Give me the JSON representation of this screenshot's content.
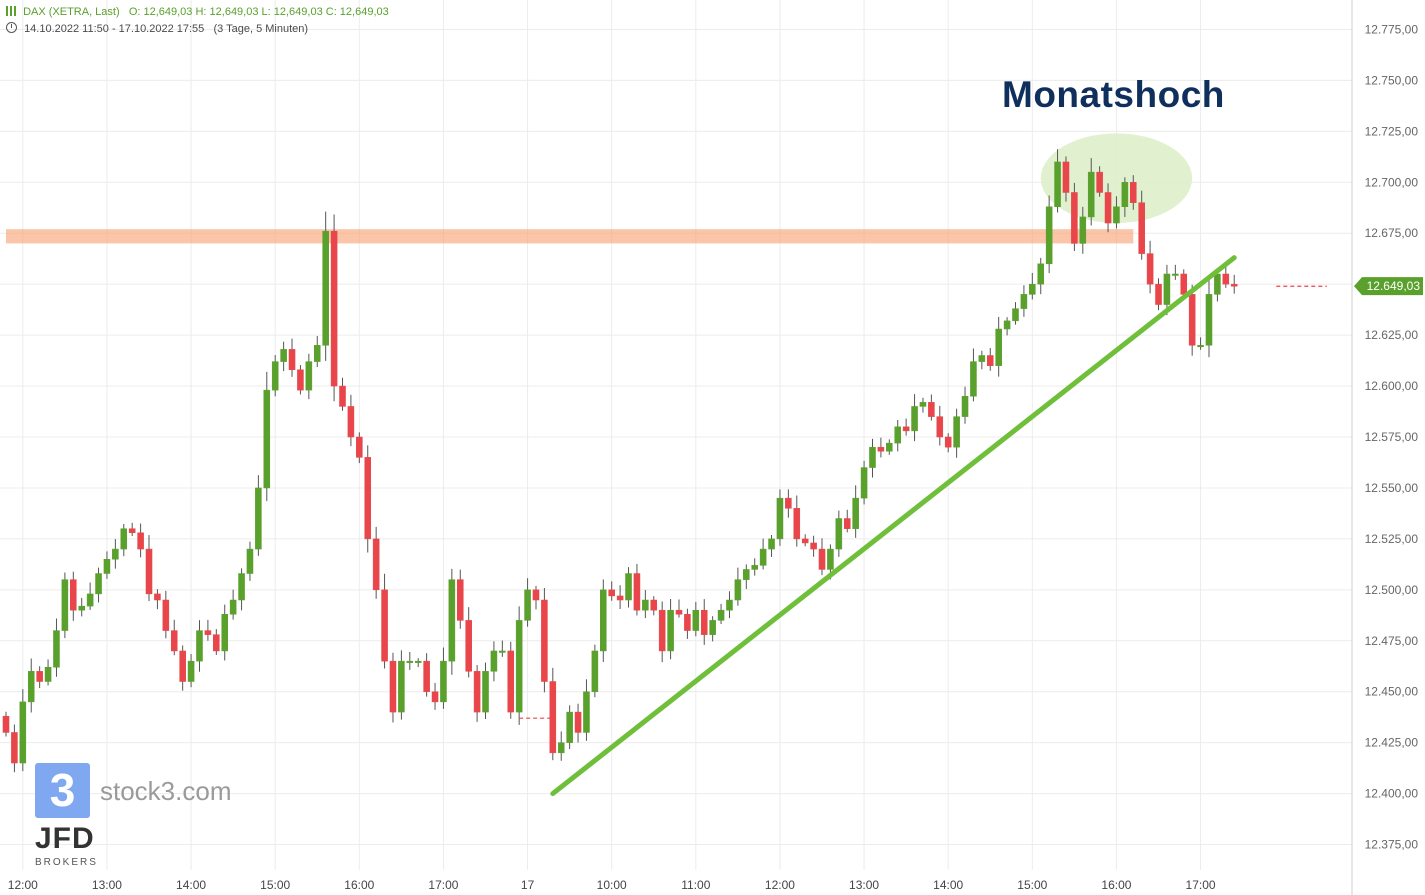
{
  "header": {
    "instrument": "DAX (XETRA, Last)",
    "ohlc": "O: 12,649,03  H: 12,649,03  L: 12,649,03  C: 12,649,03",
    "range": "14.10.2022 11:50 - 17.10.2022 17:55",
    "interval": "(3 Tage, 5 Minuten)"
  },
  "annotation": {
    "text": "Monatshoch"
  },
  "branding": {
    "logo_glyph": "3",
    "site": "stock3.com",
    "broker": "JFD",
    "broker_sub": "BROKERS"
  },
  "colors": {
    "up": "#5aa02c",
    "down": "#e8464a",
    "trend": "#6fbf3a",
    "resistance": "#f7a67a",
    "highlight": "#dcefc8",
    "grid": "#ececec"
  },
  "chart_data": {
    "type": "candlestick",
    "ylim": [
      12362.5,
      12787.5
    ],
    "yticks": [
      12375,
      12400,
      12425,
      12450,
      12475,
      12500,
      12525,
      12550,
      12575,
      12600,
      12625,
      12650,
      12675,
      12700,
      12725,
      12750,
      12775
    ],
    "ytick_labels": [
      "12.375,00",
      "12.400,00",
      "12.425,00",
      "12.450,00",
      "12.475,00",
      "12.500,00",
      "12.525,00",
      "12.550,00",
      "12.575,00",
      "12.600,00",
      "12.625,00",
      "12.650,00",
      "12.675,00",
      "12.700,00",
      "12.725,00",
      "12.750,00",
      "12.775,00"
    ],
    "xlim": [
      0,
      160
    ],
    "x_ticks": [
      {
        "x": 2,
        "label": "12:00"
      },
      {
        "x": 12,
        "label": "13:00"
      },
      {
        "x": 22,
        "label": "14:00"
      },
      {
        "x": 32,
        "label": "15:00"
      },
      {
        "x": 42,
        "label": "16:00"
      },
      {
        "x": 52,
        "label": "17:00"
      },
      {
        "x": 62,
        "label": "17"
      },
      {
        "x": 72,
        "label": "10:00"
      },
      {
        "x": 82,
        "label": "11:00"
      },
      {
        "x": 92,
        "label": "12:00"
      },
      {
        "x": 102,
        "label": "13:00"
      },
      {
        "x": 112,
        "label": "14:00"
      },
      {
        "x": 122,
        "label": "15:00"
      },
      {
        "x": 132,
        "label": "16:00"
      },
      {
        "x": 142,
        "label": "17:00"
      }
    ],
    "last_price": 12649.03,
    "last_price_label": "12.649,03",
    "grid": true,
    "close_path": [
      [
        0,
        12430
      ],
      [
        1,
        12415
      ],
      [
        2,
        12445
      ],
      [
        3,
        12460
      ],
      [
        4,
        12455
      ],
      [
        5,
        12462
      ],
      [
        6,
        12480
      ],
      [
        7,
        12505
      ],
      [
        8,
        12490
      ],
      [
        9,
        12492
      ],
      [
        10,
        12498
      ],
      [
        11,
        12508
      ],
      [
        12,
        12515
      ],
      [
        13,
        12520
      ],
      [
        14,
        12530
      ],
      [
        15,
        12528
      ],
      [
        16,
        12520
      ],
      [
        17,
        12498
      ],
      [
        18,
        12495
      ],
      [
        19,
        12480
      ],
      [
        20,
        12470
      ],
      [
        21,
        12455
      ],
      [
        22,
        12465
      ],
      [
        23,
        12480
      ],
      [
        24,
        12478
      ],
      [
        25,
        12470
      ],
      [
        26,
        12488
      ],
      [
        27,
        12495
      ],
      [
        28,
        12508
      ],
      [
        29,
        12520
      ],
      [
        30,
        12550
      ],
      [
        31,
        12598
      ],
      [
        32,
        12612
      ],
      [
        33,
        12618
      ],
      [
        34,
        12608
      ],
      [
        35,
        12598
      ],
      [
        36,
        12612
      ],
      [
        37,
        12620
      ],
      [
        38,
        12676
      ],
      [
        39,
        12600
      ],
      [
        40,
        12590
      ],
      [
        41,
        12575
      ],
      [
        42,
        12565
      ],
      [
        43,
        12525
      ],
      [
        44,
        12500
      ],
      [
        45,
        12465
      ],
      [
        46,
        12440
      ],
      [
        47,
        12465
      ],
      [
        48,
        12465
      ],
      [
        49,
        12465
      ],
      [
        50,
        12450
      ],
      [
        51,
        12445
      ],
      [
        52,
        12465
      ],
      [
        53,
        12505
      ],
      [
        54,
        12485
      ],
      [
        55,
        12460
      ],
      [
        56,
        12440
      ],
      [
        57,
        12460
      ],
      [
        58,
        12470
      ],
      [
        59,
        12470
      ],
      [
        60,
        12440
      ],
      [
        61,
        12485
      ],
      [
        62,
        12500
      ],
      [
        63,
        12495
      ],
      [
        64,
        12455
      ],
      [
        65,
        12420
      ],
      [
        66,
        12425
      ],
      [
        67,
        12440
      ],
      [
        68,
        12430
      ],
      [
        69,
        12450
      ],
      [
        70,
        12470
      ],
      [
        71,
        12500
      ],
      [
        72,
        12497
      ],
      [
        73,
        12495
      ],
      [
        74,
        12508
      ],
      [
        75,
        12490
      ],
      [
        76,
        12495
      ],
      [
        77,
        12490
      ],
      [
        78,
        12470
      ],
      [
        79,
        12490
      ],
      [
        80,
        12488
      ],
      [
        81,
        12480
      ],
      [
        82,
        12490
      ],
      [
        83,
        12478
      ],
      [
        84,
        12485
      ],
      [
        85,
        12490
      ],
      [
        86,
        12495
      ],
      [
        87,
        12505
      ],
      [
        88,
        12510
      ],
      [
        89,
        12512
      ],
      [
        90,
        12520
      ],
      [
        91,
        12525
      ],
      [
        92,
        12545
      ],
      [
        93,
        12540
      ],
      [
        94,
        12525
      ],
      [
        95,
        12523
      ],
      [
        96,
        12520
      ],
      [
        97,
        12510
      ],
      [
        98,
        12520
      ],
      [
        99,
        12535
      ],
      [
        100,
        12530
      ],
      [
        101,
        12545
      ],
      [
        102,
        12560
      ],
      [
        103,
        12570
      ],
      [
        104,
        12568
      ],
      [
        105,
        12572
      ],
      [
        106,
        12580
      ],
      [
        107,
        12578
      ],
      [
        108,
        12590
      ],
      [
        109,
        12592
      ],
      [
        110,
        12585
      ],
      [
        111,
        12575
      ],
      [
        112,
        12570
      ],
      [
        113,
        12585
      ],
      [
        114,
        12595
      ],
      [
        115,
        12612
      ],
      [
        116,
        12615
      ],
      [
        117,
        12610
      ],
      [
        118,
        12628
      ],
      [
        119,
        12632
      ],
      [
        120,
        12638
      ],
      [
        121,
        12645
      ],
      [
        122,
        12650
      ],
      [
        123,
        12660
      ],
      [
        124,
        12688
      ],
      [
        125,
        12710
      ],
      [
        126,
        12695
      ],
      [
        127,
        12670
      ],
      [
        128,
        12683
      ],
      [
        129,
        12705
      ],
      [
        130,
        12695
      ],
      [
        131,
        12680
      ],
      [
        132,
        12688
      ],
      [
        133,
        12700
      ],
      [
        134,
        12690
      ],
      [
        135,
        12665
      ],
      [
        136,
        12650
      ],
      [
        137,
        12640
      ],
      [
        138,
        12655
      ],
      [
        139,
        12655
      ],
      [
        140,
        12645
      ],
      [
        141,
        12620
      ],
      [
        142,
        12620
      ],
      [
        143,
        12645
      ],
      [
        144,
        12655
      ],
      [
        145,
        12650
      ],
      [
        146,
        12649
      ]
    ],
    "dashed_levels": [
      {
        "x1": 61,
        "x2": 65,
        "y": 12437
      },
      {
        "x1": 151,
        "x2": 157,
        "y": 12649
      }
    ],
    "trendline": {
      "x1": 65,
      "y1": 12400,
      "x2": 146,
      "y2": 12663
    },
    "resistance_zone": {
      "x1": 0,
      "x2": 134,
      "y_low": 12670,
      "y_high": 12677
    },
    "highlight_area": {
      "x_center": 132,
      "y_center": 12702,
      "x_radius": 9,
      "y_radius": 22
    }
  }
}
